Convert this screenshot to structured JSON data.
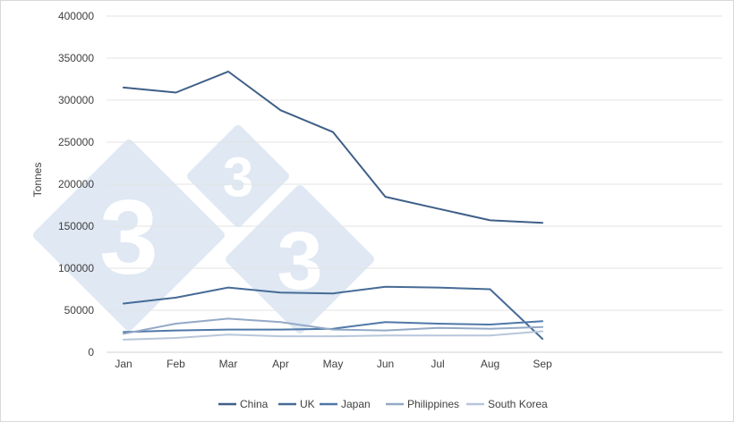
{
  "chart_data": {
    "type": "line",
    "ylabel": "Tonnes",
    "xlabel": "",
    "categories": [
      "Jan",
      "Feb",
      "Mar",
      "Apr",
      "May",
      "Jun",
      "Jul",
      "Aug",
      "Sep"
    ],
    "ylim": [
      0,
      400000
    ],
    "yticks": [
      0,
      50000,
      100000,
      150000,
      200000,
      250000,
      300000,
      350000,
      400000
    ],
    "grid": true,
    "legend_position": "bottom",
    "series": [
      {
        "name": "China",
        "color": "#3e5f87",
        "values": [
          315000,
          309000,
          334000,
          288000,
          262000,
          185000,
          171000,
          157000,
          154000
        ]
      },
      {
        "name": "UK",
        "color": "#466b97",
        "values": [
          58000,
          65000,
          77000,
          71000,
          70000,
          78000,
          77000,
          75000,
          16000
        ]
      },
      {
        "name": "Japan",
        "color": "#4f78a8",
        "values": [
          24000,
          26000,
          27000,
          27000,
          28000,
          36000,
          34000,
          33000,
          37000
        ]
      },
      {
        "name": "Philippines",
        "color": "#93a9c6",
        "values": [
          22000,
          34000,
          40000,
          36000,
          27000,
          26000,
          29000,
          28000,
          30000
        ]
      },
      {
        "name": "South Korea",
        "color": "#b7c6da",
        "values": [
          15000,
          17000,
          21000,
          19000,
          19000,
          20000,
          20000,
          20000,
          25000
        ]
      }
    ]
  },
  "watermark": {
    "digits": [
      "3",
      "3",
      "3"
    ],
    "color": "#dfe8f3"
  }
}
